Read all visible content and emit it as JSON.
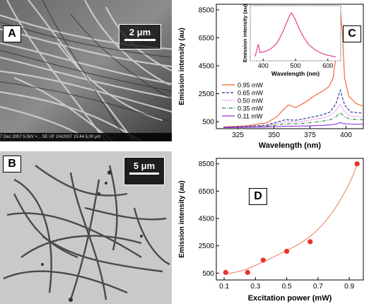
{
  "panels": {
    "A": {
      "label": "A",
      "scale": "2 μm",
      "footer": "7 Dec 2007  5.0kV  ×...  SE  UF  2/4/2007  15:44       5.00 μm"
    },
    "B": {
      "label": "B",
      "scale": "5 μm"
    },
    "C": {
      "label": "C"
    },
    "D": {
      "label": "D"
    }
  },
  "chart_data": [
    {
      "id": "C",
      "type": "line",
      "xlabel": "Wavelength (nm)",
      "ylabel": "Emission intensity (au)",
      "xlim": [
        310,
        412
      ],
      "ylim": [
        0,
        8900
      ],
      "xticks": [
        325,
        350,
        375,
        400
      ],
      "yticks": [
        500,
        2500,
        4500,
        6500,
        8500
      ],
      "legend_position": "lower-left",
      "series": [
        {
          "name": "0.95 mW",
          "color": "#f25c2a",
          "dash": "",
          "x": [
            315,
            330,
            345,
            352,
            356,
            360,
            365,
            372,
            378,
            384,
            388,
            391,
            393,
            394.5,
            396,
            397.5,
            399,
            402,
            407,
            412
          ],
          "y": [
            120,
            190,
            420,
            850,
            1300,
            1700,
            1500,
            1900,
            2350,
            2700,
            3000,
            3600,
            5200,
            7200,
            8500,
            6800,
            3600,
            2300,
            1800,
            1600
          ]
        },
        {
          "name": "0.65 mW",
          "color": "#2d2d9a",
          "dash": "4,2",
          "x": [
            315,
            330,
            345,
            352,
            358,
            365,
            372,
            378,
            384,
            389,
            393,
            396,
            399,
            403,
            412
          ],
          "y": [
            100,
            150,
            260,
            470,
            640,
            600,
            730,
            860,
            1000,
            1200,
            1800,
            2750,
            1700,
            1200,
            1100
          ]
        },
        {
          "name": "0.50 mW",
          "color": "#d844d8",
          "dash": "1,1.5",
          "x": [
            315,
            330,
            345,
            352,
            358,
            365,
            372,
            378,
            384,
            389,
            393,
            396,
            399,
            403,
            412
          ],
          "y": [
            90,
            130,
            210,
            370,
            500,
            470,
            560,
            660,
            780,
            930,
            1300,
            1750,
            1200,
            900,
            830
          ]
        },
        {
          "name": "0.35 mW",
          "color": "#1f8a3a",
          "dash": "5,2,1,2",
          "x": [
            315,
            330,
            345,
            352,
            358,
            365,
            372,
            378,
            384,
            389,
            393,
            396,
            399,
            403,
            412
          ],
          "y": [
            80,
            110,
            170,
            270,
            360,
            340,
            400,
            460,
            540,
            640,
            860,
            1150,
            850,
            680,
            640
          ]
        },
        {
          "name": "0.11 mW",
          "color": "#8a2be2",
          "dash": "",
          "x": [
            315,
            330,
            345,
            352,
            358,
            365,
            372,
            378,
            384,
            389,
            393,
            396,
            399,
            403,
            412
          ],
          "y": [
            70,
            90,
            120,
            150,
            180,
            175,
            190,
            210,
            240,
            270,
            330,
            430,
            360,
            330,
            320
          ]
        }
      ]
    },
    {
      "id": "C-inset",
      "type": "line",
      "xlabel": "Wavelength (nm)",
      "ylabel": "Emission intensity (au)",
      "xlim": [
        360,
        640
      ],
      "ylim": [
        0,
        1
      ],
      "xticks": [
        400,
        500,
        600
      ],
      "series": [
        {
          "color": "#e0408a",
          "x": [
            375,
            385,
            390,
            400,
            420,
            440,
            455,
            470,
            480,
            487,
            493,
            500,
            510,
            525,
            540,
            560,
            580,
            600,
            625
          ],
          "y": [
            0.08,
            0.3,
            0.15,
            0.16,
            0.2,
            0.3,
            0.45,
            0.65,
            0.8,
            0.87,
            0.82,
            0.74,
            0.6,
            0.43,
            0.3,
            0.2,
            0.14,
            0.1,
            0.07
          ]
        }
      ]
    },
    {
      "id": "D",
      "type": "scatter",
      "xlabel": "Excitation power (mW)",
      "ylabel": "Emission intensity (au)",
      "xlim": [
        0.05,
        0.99
      ],
      "ylim": [
        0,
        8900
      ],
      "xticks": [
        0.1,
        0.3,
        0.5,
        0.7,
        0.9
      ],
      "yticks": [
        500,
        2500,
        4500,
        6500,
        8500
      ],
      "point_color": "#e8332a",
      "fit_color": "#f07a5a",
      "series": [
        {
          "x": [
            0.11,
            0.25,
            0.35,
            0.5,
            0.65,
            0.95
          ],
          "y": [
            550,
            550,
            1450,
            2100,
            2800,
            8500
          ]
        }
      ],
      "fit": {
        "x": [
          0.11,
          0.2,
          0.3,
          0.4,
          0.5,
          0.6,
          0.7,
          0.8,
          0.9,
          0.95
        ],
        "y": [
          430,
          600,
          1050,
          1600,
          2150,
          2750,
          3650,
          5000,
          7000,
          8400
        ]
      }
    }
  ]
}
